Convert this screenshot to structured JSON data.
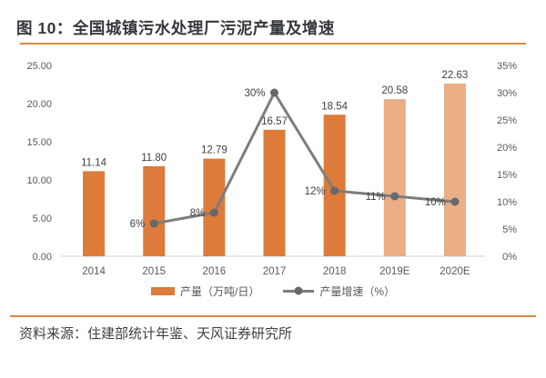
{
  "header": {
    "title": "图 10：全国城镇污水处理厂污泥产量及增速"
  },
  "footer": {
    "source": "资料来源：住建部统计年鉴、天风证券研究所"
  },
  "colors": {
    "accent_rule": "#e0883f",
    "bar": "#dc7b3a",
    "bar_estimate": "#eaae85",
    "line": "#7d7d7d",
    "marker": "#686868",
    "axis_text": "#595959",
    "label_text": "#3f3f3f",
    "axis_line": "#cfcfcf"
  },
  "chart_data": {
    "type": "bar",
    "title": "全国城镇污水处理厂污泥产量及增速",
    "categories": [
      "2014",
      "2015",
      "2016",
      "2017",
      "2018",
      "2019E",
      "2020E"
    ],
    "series": [
      {
        "name": "产量（万吨/日）",
        "type": "bar",
        "axis": "left",
        "values": [
          11.14,
          11.8,
          12.79,
          16.57,
          18.54,
          20.58,
          22.63
        ],
        "labels": [
          "11.14",
          "11.80",
          "12.79",
          "16.57",
          "18.54",
          "20.58",
          "22.63"
        ],
        "estimate_start_index": 5
      },
      {
        "name": "产量增速（%）",
        "type": "line",
        "axis": "right",
        "values": [
          null,
          6,
          8,
          30,
          12,
          11,
          10
        ],
        "labels": [
          null,
          "6%",
          "8%",
          "30%",
          "12%",
          "11%",
          "10%"
        ]
      }
    ],
    "left_axis": {
      "min": 0,
      "max": 25,
      "tick_step": 5,
      "ticks": [
        "0.00",
        "5.00",
        "10.00",
        "15.00",
        "20.00",
        "25.00"
      ]
    },
    "right_axis": {
      "min": 0,
      "max": 35,
      "tick_step": 5,
      "ticks": [
        "0%",
        "5%",
        "10%",
        "15%",
        "20%",
        "25%",
        "30%",
        "35%"
      ]
    },
    "legend": [
      "产量（万吨/日）",
      "产量增速（%）"
    ],
    "legend_position": "bottom",
    "grid": false
  }
}
